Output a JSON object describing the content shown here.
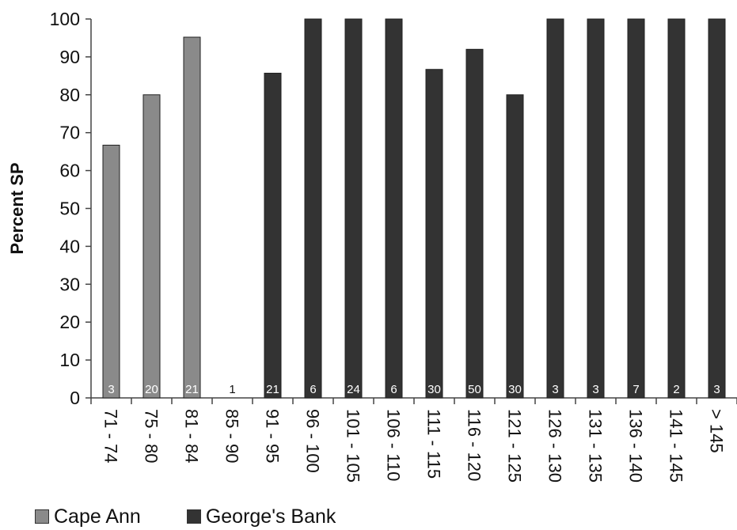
{
  "chart_data": {
    "type": "bar",
    "ylabel": "Percent SP",
    "ylim": [
      0,
      100
    ],
    "yticks": [
      0,
      10,
      20,
      30,
      40,
      50,
      60,
      70,
      80,
      90,
      100
    ],
    "categories": [
      "71 - 74",
      "75 - 80",
      "81 - 84",
      "85 - 90",
      "91 - 95",
      "96 - 100",
      "101 - 105",
      "106 - 110",
      "111 - 115",
      "116 - 120",
      "121 - 125",
      "126 - 130",
      "131 - 135",
      "136 - 140",
      "141 - 145",
      "> 145"
    ],
    "series": [
      {
        "name": "Cape Ann",
        "color": "#8a8a8a",
        "values": [
          66.7,
          80,
          95.2,
          0,
          null,
          null,
          null,
          null,
          null,
          null,
          null,
          null,
          null,
          null,
          null,
          null
        ]
      },
      {
        "name": "George's Bank",
        "color": "#333333",
        "values": [
          null,
          null,
          null,
          null,
          85.7,
          100,
          100,
          100,
          86.7,
          92,
          80,
          100,
          100,
          100,
          100,
          100
        ]
      }
    ],
    "sample_sizes": [
      "3",
      "20",
      "21",
      "1",
      "21",
      "6",
      "24",
      "6",
      "30",
      "50",
      "30",
      "3",
      "3",
      "7",
      "2",
      "3"
    ],
    "grid": false,
    "legend_position": "bottom-left"
  }
}
